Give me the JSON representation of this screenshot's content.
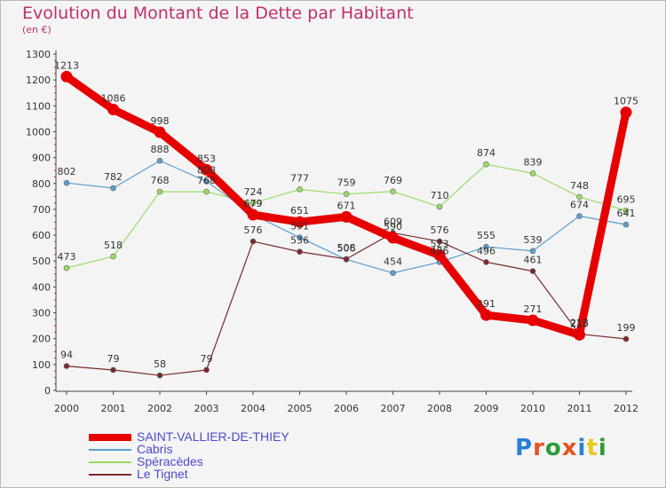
{
  "header": {
    "title": "Evolution du Montant de la Dette par Habitant",
    "subtitle": "(en €)"
  },
  "logo": {
    "text": "Proxiti",
    "letter_colors": [
      "#2a7fd4",
      "#e8531f",
      "#2a9d3a",
      "#e8531f",
      "#2a7fd4",
      "#e8c91f",
      "#2a9d3a"
    ]
  },
  "chart_data": {
    "type": "line",
    "title": "Evolution du Montant de la Dette par Habitant",
    "subtitle": "(en €)",
    "xlabel": "",
    "ylabel": "",
    "categories": [
      "2000",
      "2001",
      "2002",
      "2003",
      "2004",
      "2005",
      "2006",
      "2007",
      "2008",
      "2009",
      "2010",
      "2011",
      "2012"
    ],
    "ylim": [
      0,
      1300
    ],
    "yticks": [
      "0",
      "100",
      "200",
      "300",
      "400",
      "500",
      "600",
      "700",
      "800",
      "900",
      "1000",
      "1100",
      "1200",
      "1300"
    ],
    "grid": false,
    "legend_position": "bottom-left",
    "series": [
      {
        "name": "SAINT-VALLIER-DE-THIEY",
        "color": "#e60000",
        "line_width": 9,
        "marker_radius": 6.5,
        "values": [
          1213,
          1086,
          998,
          853,
          679,
          651,
          671,
          590,
          523,
          291,
          271,
          215,
          1075
        ],
        "labels": [
          "1213",
          "1086",
          "998",
          "853",
          "679",
          "651",
          "671",
          "590",
          "523",
          "291",
          "271",
          "215",
          "1075"
        ]
      },
      {
        "name": "Cabris",
        "color": "#5c9fd1",
        "line_width": 1.2,
        "marker_radius": 3,
        "values": [
          802,
          782,
          888,
          808,
          679,
          591,
          506,
          454,
          496,
          555,
          539,
          674,
          641
        ],
        "labels": [
          "802",
          "782",
          "888",
          "808",
          "679",
          "591",
          "506",
          "454",
          "496",
          "555",
          "539",
          "674",
          "641"
        ]
      },
      {
        "name": "Spéracèdes",
        "color": "#99dd66",
        "line_width": 1.2,
        "marker_radius": 3,
        "values": [
          473,
          518,
          768,
          768,
          724,
          777,
          759,
          769,
          710,
          874,
          839,
          748,
          695
        ],
        "labels": [
          "473",
          "518",
          "768",
          "768",
          "724",
          "777",
          "759",
          "769",
          "710",
          "874",
          "839",
          "748",
          "695"
        ]
      },
      {
        "name": "Le Tignet",
        "color": "#7a2a2a",
        "line_width": 1.2,
        "marker_radius": 3,
        "values": [
          94,
          79,
          58,
          79,
          576,
          536,
          508,
          609,
          576,
          496,
          461,
          218,
          199
        ],
        "labels": [
          "94",
          "79",
          "58",
          "79",
          "576",
          "536",
          "508",
          "609",
          "576",
          "496",
          "461",
          "218",
          "199"
        ]
      }
    ]
  }
}
